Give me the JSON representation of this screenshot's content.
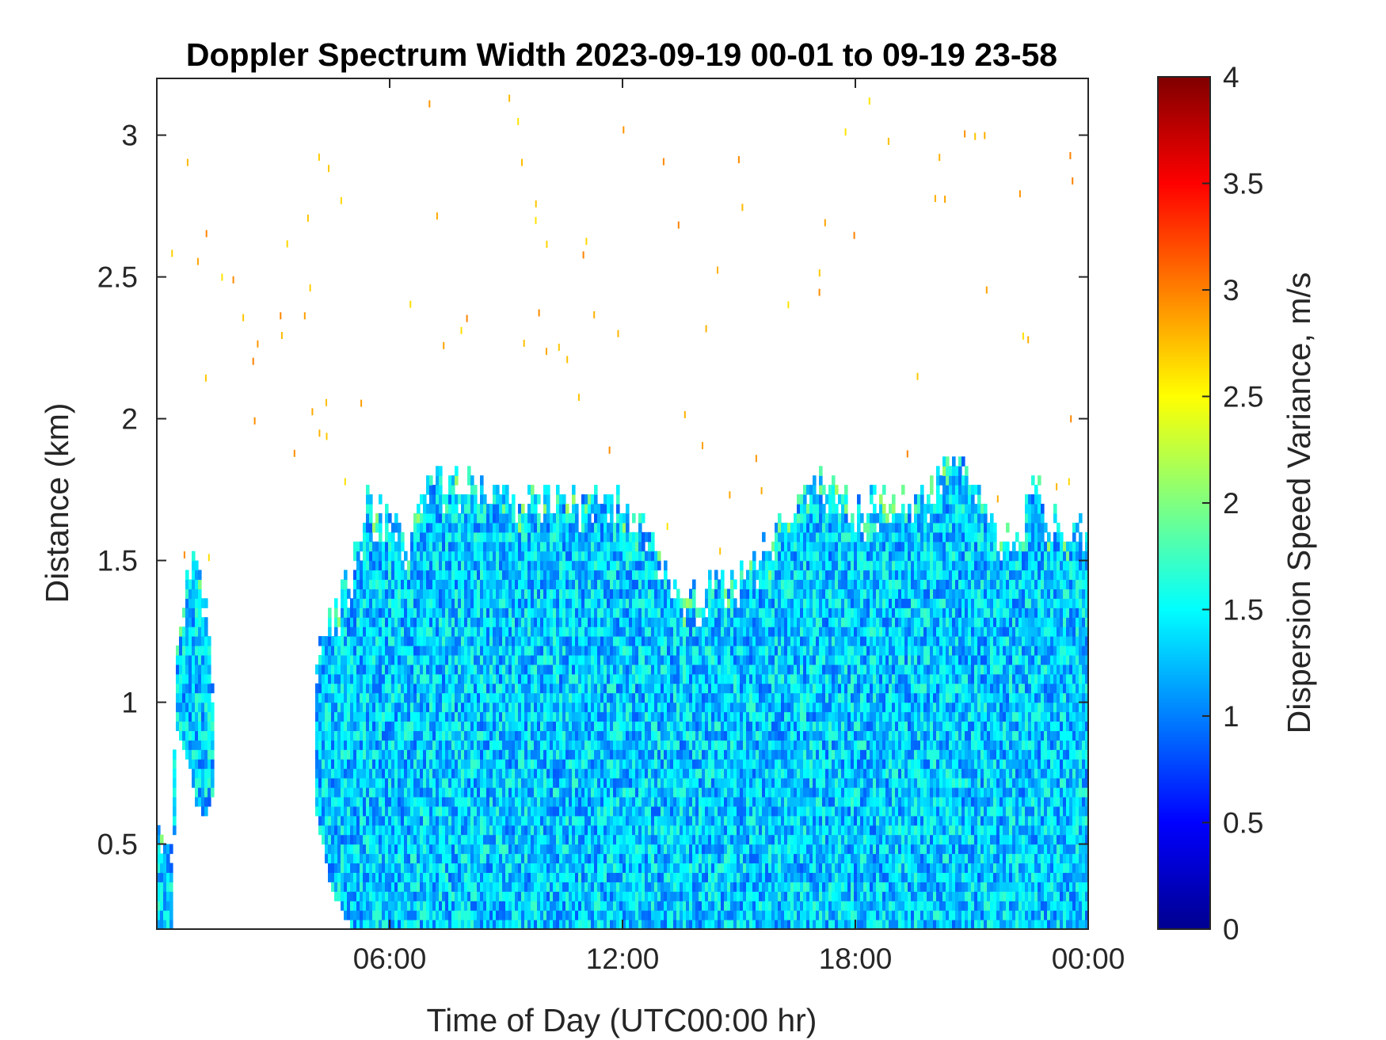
{
  "chart_data": {
    "type": "heatmap",
    "title": "Doppler Spectrum Width 2023-09-19 00-01 to 09-19 23-58",
    "xlabel": "Time of Day (UTC00:00 hr)",
    "ylabel": "Distance (km)",
    "colorbar_label": "Dispersion Speed Variance, m/s",
    "colormap": "jet",
    "x_unit": "hours",
    "xlim": [
      0,
      24
    ],
    "ylim": [
      0.2,
      3.2
    ],
    "clim": [
      0,
      4
    ],
    "x_ticks": [
      {
        "value": 6,
        "label": "06:00"
      },
      {
        "value": 12,
        "label": "12:00"
      },
      {
        "value": 18,
        "label": "18:00"
      },
      {
        "value": 24,
        "label": "00:00"
      }
    ],
    "y_ticks": [
      {
        "value": 0.5,
        "label": "0.5"
      },
      {
        "value": 1,
        "label": "1"
      },
      {
        "value": 1.5,
        "label": "1.5"
      },
      {
        "value": 2,
        "label": "2"
      },
      {
        "value": 2.5,
        "label": "2.5"
      },
      {
        "value": 3,
        "label": "3"
      }
    ],
    "colorbar_ticks": [
      {
        "value": 0,
        "label": "0"
      },
      {
        "value": 0.5,
        "label": "0.5"
      },
      {
        "value": 1,
        "label": "1"
      },
      {
        "value": 1.5,
        "label": "1.5"
      },
      {
        "value": 2,
        "label": "2"
      },
      {
        "value": 2.5,
        "label": "2.5"
      },
      {
        "value": 3,
        "label": "3"
      },
      {
        "value": 3.5,
        "label": "3.5"
      },
      {
        "value": 4,
        "label": "4"
      }
    ],
    "typical_value": 1.3,
    "echo_top_profile": [
      {
        "t": 0.0,
        "bottom": 0.2,
        "top": 0.55
      },
      {
        "t": 0.4,
        "bottom": 0.2,
        "top": 0.5
      },
      {
        "t": 0.5,
        "bottom": 0.9,
        "top": 1.2
      },
      {
        "t": 0.8,
        "bottom": 0.8,
        "top": 1.45
      },
      {
        "t": 1.0,
        "bottom": 0.65,
        "top": 1.5
      },
      {
        "t": 1.2,
        "bottom": 0.6,
        "top": 1.4
      },
      {
        "t": 1.4,
        "bottom": 0.65,
        "top": 1.2
      },
      {
        "t": 1.5,
        "bottom": 0.7,
        "top": 0.9
      },
      {
        "t": 4.1,
        "bottom": 0.6,
        "top": 1.2
      },
      {
        "t": 4.5,
        "bottom": 0.35,
        "top": 1.3
      },
      {
        "t": 5.0,
        "bottom": 0.2,
        "top": 1.45
      },
      {
        "t": 5.4,
        "bottom": 0.2,
        "top": 1.7
      },
      {
        "t": 6.0,
        "bottom": 0.2,
        "top": 1.65
      },
      {
        "t": 6.5,
        "bottom": 0.2,
        "top": 1.55
      },
      {
        "t": 7.0,
        "bottom": 0.2,
        "top": 1.85
      },
      {
        "t": 7.5,
        "bottom": 0.2,
        "top": 1.75
      },
      {
        "t": 8.0,
        "bottom": 0.2,
        "top": 1.8
      },
      {
        "t": 8.5,
        "bottom": 0.2,
        "top": 1.72
      },
      {
        "t": 9.0,
        "bottom": 0.2,
        "top": 1.72
      },
      {
        "t": 10.0,
        "bottom": 0.2,
        "top": 1.72
      },
      {
        "t": 11.0,
        "bottom": 0.2,
        "top": 1.72
      },
      {
        "t": 12.0,
        "bottom": 0.2,
        "top": 1.7
      },
      {
        "t": 12.8,
        "bottom": 0.2,
        "top": 1.6
      },
      {
        "t": 13.3,
        "bottom": 0.2,
        "top": 1.4
      },
      {
        "t": 14.0,
        "bottom": 0.2,
        "top": 1.38
      },
      {
        "t": 14.5,
        "bottom": 0.2,
        "top": 1.42
      },
      {
        "t": 15.2,
        "bottom": 0.2,
        "top": 1.5
      },
      {
        "t": 16.0,
        "bottom": 0.2,
        "top": 1.6
      },
      {
        "t": 16.5,
        "bottom": 0.2,
        "top": 1.7
      },
      {
        "t": 17.3,
        "bottom": 0.2,
        "top": 1.8
      },
      {
        "t": 18.0,
        "bottom": 0.2,
        "top": 1.7
      },
      {
        "t": 19.0,
        "bottom": 0.2,
        "top": 1.72
      },
      {
        "t": 20.0,
        "bottom": 0.2,
        "top": 1.78
      },
      {
        "t": 20.5,
        "bottom": 0.2,
        "top": 1.9
      },
      {
        "t": 21.2,
        "bottom": 0.2,
        "top": 1.75
      },
      {
        "t": 21.7,
        "bottom": 0.2,
        "top": 1.6
      },
      {
        "t": 22.3,
        "bottom": 0.2,
        "top": 1.6
      },
      {
        "t": 22.6,
        "bottom": 0.2,
        "top": 1.85
      },
      {
        "t": 23.0,
        "bottom": 0.2,
        "top": 1.65
      },
      {
        "t": 24.0,
        "bottom": 0.2,
        "top": 1.6
      }
    ]
  }
}
